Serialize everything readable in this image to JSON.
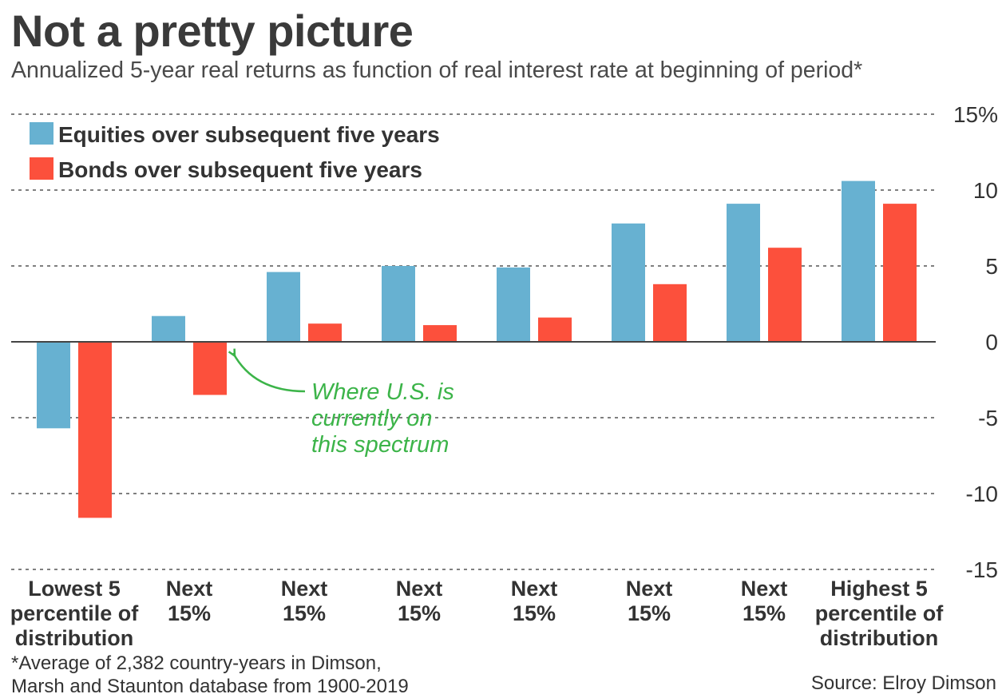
{
  "header": {
    "title": "Not a pretty picture",
    "subtitle": "Annualized 5-year real returns as function of real interest rate at beginning of period*"
  },
  "footer": {
    "footnote_line1": "*Average of 2,382 country-years in Dimson,",
    "footnote_line2": "Marsh and Staunton database from 1900-2019",
    "source": "Source: Elroy Dimson"
  },
  "chart_data": {
    "type": "bar",
    "categories": [
      [
        "Lowest 5",
        "percentile of",
        "distribution"
      ],
      [
        "Next",
        "15%"
      ],
      [
        "Next",
        "15%"
      ],
      [
        "Next",
        "15%"
      ],
      [
        "Next",
        "15%"
      ],
      [
        "Next",
        "15%"
      ],
      [
        "Next",
        "15%"
      ],
      [
        "Highest 5",
        "percentile of",
        "distribution"
      ]
    ],
    "series": [
      {
        "name": "Equities over subsequent five years",
        "color": "#67b1d1",
        "values": [
          -5.7,
          1.7,
          4.6,
          5.0,
          4.9,
          7.8,
          9.1,
          10.6
        ]
      },
      {
        "name": "Bonds over subsequent five years",
        "color": "#fc503c",
        "values": [
          -11.6,
          -3.5,
          1.2,
          1.1,
          1.6,
          3.8,
          6.2,
          9.1
        ]
      }
    ],
    "yticks": [
      15,
      10,
      5,
      0,
      -5,
      -10,
      -15
    ],
    "ytick_labels": [
      "15%",
      "10",
      "5",
      "0",
      "-5",
      "-10",
      "-15"
    ],
    "ylim": [
      -15,
      15
    ],
    "grid": true,
    "legend_position": "top-left",
    "annotation": {
      "lines": [
        "Where U.S. is",
        "currently on",
        "this spectrum"
      ],
      "color": "#3cb449",
      "target_category_index": 1
    }
  }
}
